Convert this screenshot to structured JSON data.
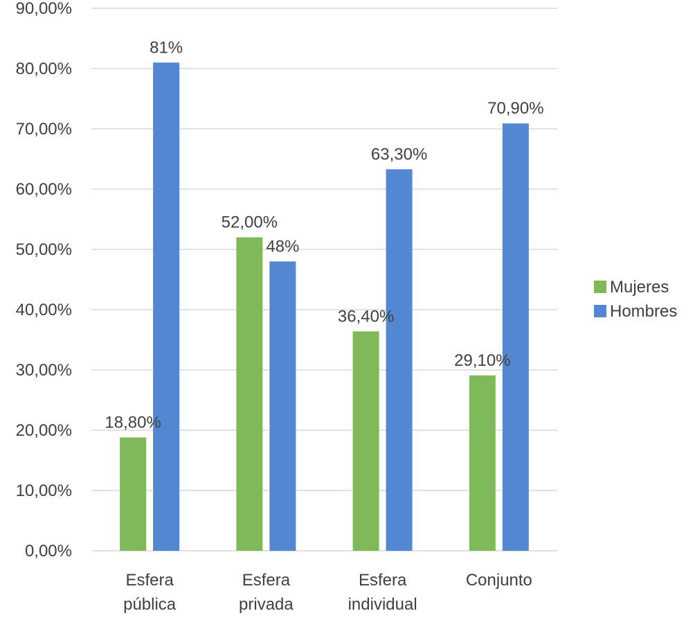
{
  "chart_data": {
    "type": "bar",
    "categories": [
      [
        "Esfera",
        "pública"
      ],
      [
        "Esfera",
        "privada"
      ],
      [
        "Esfera",
        "individual"
      ],
      [
        "Conjunto"
      ]
    ],
    "series": [
      {
        "name": "Mujeres",
        "color": "#7fb95a",
        "values": [
          18.8,
          52.0,
          36.4,
          29.1
        ],
        "labels": [
          "18,80%",
          "52,00%",
          "36,40%",
          "29,10%"
        ]
      },
      {
        "name": "Hombres",
        "color": "#5387d1",
        "values": [
          81,
          48,
          63.3,
          70.9
        ],
        "labels": [
          "81%",
          "48%",
          "63,30%",
          "70,90%"
        ]
      }
    ],
    "ylim": [
      0,
      90
    ],
    "yticks": [
      0,
      10,
      20,
      30,
      40,
      50,
      60,
      70,
      80,
      90
    ],
    "ytick_labels": [
      "0,00%",
      "10,00%",
      "20,00%",
      "30,00%",
      "40,00%",
      "50,00%",
      "60,00%",
      "70,00%",
      "80,00%",
      "90,00%"
    ],
    "grid": true,
    "legend_position": "right"
  }
}
